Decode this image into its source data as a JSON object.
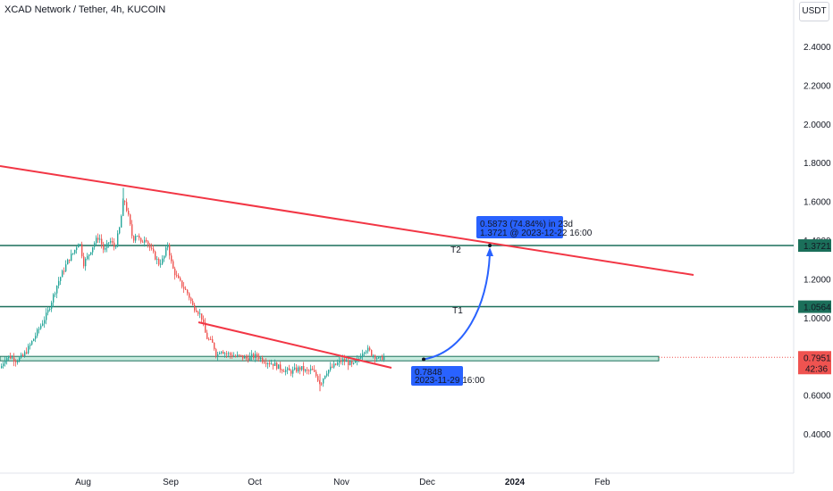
{
  "header": {
    "title": "XCAD Network / Tether, 4h, KUCOIN",
    "currency": "USDT"
  },
  "colors": {
    "up": "#26a69a",
    "down": "#ef5350",
    "trendline": "#f23645",
    "level": "#1b6f5a",
    "projection": "#2962ff",
    "zone": "#c8ecdf"
  },
  "chart_data": {
    "type": "candlestick",
    "title": "XCAD Network / Tether, 4h, KUCOIN",
    "y_ticks": [
      "2.4000",
      "2.2000",
      "2.0000",
      "1.8000",
      "1.6000",
      "1.4000",
      "1.2000",
      "1.0000",
      "0.8000",
      "0.6000",
      "0.4000"
    ],
    "ylim": [
      0.3,
      2.55
    ],
    "x_ticks": [
      "Aug",
      "Sep",
      "Oct",
      "Nov",
      "Dec",
      "2024",
      "Feb"
    ],
    "horizontal_levels": [
      {
        "value": 1.3721,
        "label": "1.3721"
      },
      {
        "value": 1.0564,
        "label": "1.0564"
      }
    ],
    "current_price": {
      "value": 0.7951,
      "label": "0.7951",
      "countdown": "42:36"
    },
    "support_zone": [
      0.777,
      0.8
    ],
    "targets": [
      {
        "name": "T1",
        "value": 1.0564
      },
      {
        "name": "T2",
        "value": 1.3721
      }
    ],
    "projection": {
      "from_label": "0.7848",
      "from_date": "2023-11-29 16:00",
      "to_line1": "0.5873 (74.84%) in 23d",
      "to_line2": "1.3721 @ 2023-12-22  16:00"
    },
    "price_path": [
      [
        0,
        0.74
      ],
      [
        5,
        0.79
      ],
      [
        10,
        0.8
      ],
      [
        18,
        0.78
      ],
      [
        25,
        0.8
      ],
      [
        32,
        0.85
      ],
      [
        38,
        0.9
      ],
      [
        45,
        0.96
      ],
      [
        52,
        1.02
      ],
      [
        58,
        1.1
      ],
      [
        64,
        1.18
      ],
      [
        70,
        1.24
      ],
      [
        76,
        1.3
      ],
      [
        82,
        1.34
      ],
      [
        88,
        1.4
      ],
      [
        93,
        1.28
      ],
      [
        98,
        1.32
      ],
      [
        104,
        1.38
      ],
      [
        110,
        1.42
      ],
      [
        116,
        1.34
      ],
      [
        122,
        1.4
      ],
      [
        128,
        1.36
      ],
      [
        133,
        1.46
      ],
      [
        138,
        1.62
      ],
      [
        143,
        1.52
      ],
      [
        148,
        1.4
      ],
      [
        152,
        1.44
      ],
      [
        157,
        1.38
      ],
      [
        162,
        1.42
      ],
      [
        167,
        1.36
      ],
      [
        172,
        1.32
      ],
      [
        177,
        1.28
      ],
      [
        182,
        1.3
      ],
      [
        187,
        1.38
      ],
      [
        192,
        1.26
      ],
      [
        198,
        1.2
      ],
      [
        204,
        1.16
      ],
      [
        210,
        1.12
      ],
      [
        215,
        1.06
      ],
      [
        220,
        1.04
      ],
      [
        225,
        1.0
      ],
      [
        230,
        0.9
      ],
      [
        234,
        0.88
      ],
      [
        238,
        0.86
      ],
      [
        242,
        0.8
      ],
      [
        246,
        0.84
      ],
      [
        250,
        0.82
      ],
      [
        256,
        0.81
      ],
      [
        262,
        0.8
      ],
      [
        268,
        0.8
      ],
      [
        275,
        0.79
      ],
      [
        282,
        0.8
      ],
      [
        288,
        0.8
      ],
      [
        294,
        0.78
      ],
      [
        300,
        0.77
      ],
      [
        306,
        0.76
      ],
      [
        312,
        0.74
      ],
      [
        318,
        0.73
      ],
      [
        324,
        0.72
      ],
      [
        330,
        0.73
      ],
      [
        336,
        0.74
      ],
      [
        342,
        0.72
      ],
      [
        348,
        0.73
      ],
      [
        353,
        0.7
      ],
      [
        358,
        0.66
      ],
      [
        364,
        0.72
      ],
      [
        370,
        0.74
      ],
      [
        376,
        0.76
      ],
      [
        382,
        0.78
      ],
      [
        388,
        0.77
      ],
      [
        394,
        0.75
      ],
      [
        400,
        0.78
      ],
      [
        404,
        0.82
      ],
      [
        408,
        0.84
      ],
      [
        412,
        0.83
      ],
      [
        416,
        0.81
      ],
      [
        420,
        0.8
      ],
      [
        424,
        0.78
      ],
      [
        428,
        0.8
      ],
      [
        430,
        0.795
      ]
    ]
  }
}
